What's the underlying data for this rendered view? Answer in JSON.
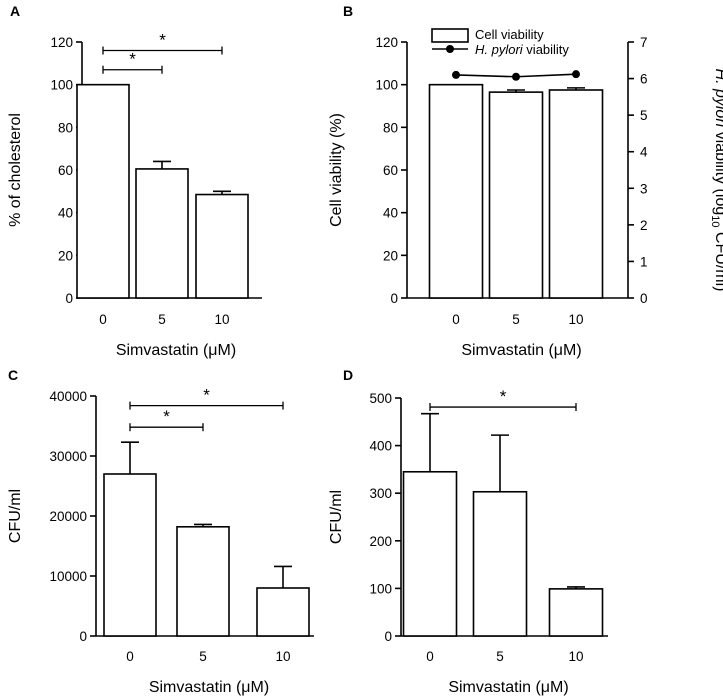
{
  "chart_data": [
    {
      "panel": "A",
      "type": "bar",
      "categories": [
        "0",
        "5",
        "10"
      ],
      "values": [
        100,
        60.5,
        48.5
      ],
      "errors": [
        0,
        3.5,
        1.5
      ],
      "ylabel": "% of cholesterol",
      "xlabel": "Simvastatin (μM)",
      "ylim": [
        0,
        120
      ],
      "yticks": [
        0,
        20,
        40,
        60,
        80,
        100,
        120
      ],
      "significance": [
        {
          "from": 0,
          "to": 1,
          "value": 107,
          "label": "*"
        },
        {
          "from": 0,
          "to": 2,
          "value": 116,
          "label": "*"
        }
      ]
    },
    {
      "panel": "B",
      "type": "bar",
      "categories": [
        "0",
        "5",
        "10"
      ],
      "values": [
        100,
        96.5,
        97.5
      ],
      "errors": [
        0,
        1,
        1
      ],
      "ylabel": "Cell viability (%)",
      "xlabel": "Simvastatin (μM)",
      "ylim": [
        0,
        120
      ],
      "yticks": [
        0,
        20,
        40,
        60,
        80,
        100,
        120
      ],
      "y2label_italic": "H. pylori",
      "y2label_pre": "",
      "y2label_mid": " viability (log",
      "y2label_sub": "10",
      "y2label_post": " CFU/ml)",
      "y2lim": [
        0,
        7
      ],
      "y2ticks": [
        0,
        1,
        2,
        3,
        4,
        5,
        6,
        7
      ],
      "line_series": {
        "name": "H. pylori viability",
        "values": [
          6.1,
          6.05,
          6.12
        ]
      },
      "legend": [
        {
          "name": "Cell viability",
          "marker": "bar"
        },
        {
          "name_italic": "H. pylori",
          "name_rest": " viability",
          "marker": "line-dot"
        }
      ]
    },
    {
      "panel": "C",
      "type": "bar",
      "categories": [
        "0",
        "5",
        "10"
      ],
      "values": [
        27000,
        18200,
        8000
      ],
      "errors": [
        5300,
        400,
        3600
      ],
      "ylabel": "CFU/ml",
      "xlabel": "Simvastatin (μM)",
      "ylim": [
        0,
        40000
      ],
      "yticks": [
        0,
        10000,
        20000,
        30000,
        40000
      ],
      "significance": [
        {
          "from": 0,
          "to": 1,
          "value": 34800,
          "label": "*"
        },
        {
          "from": 0,
          "to": 2,
          "value": 38400,
          "label": "*"
        }
      ]
    },
    {
      "panel": "D",
      "type": "bar",
      "categories": [
        "0",
        "5",
        "10"
      ],
      "values": [
        345,
        303,
        99
      ],
      "errors": [
        122,
        119,
        4
      ],
      "ylabel": "CFU/ml",
      "xlabel": "Simvastatin (μM)",
      "ylim": [
        0,
        500
      ],
      "yticks": [
        0,
        100,
        200,
        300,
        400,
        500
      ],
      "significance": [
        {
          "from": 0,
          "to": 2,
          "value": 481,
          "label": "*"
        }
      ]
    }
  ]
}
